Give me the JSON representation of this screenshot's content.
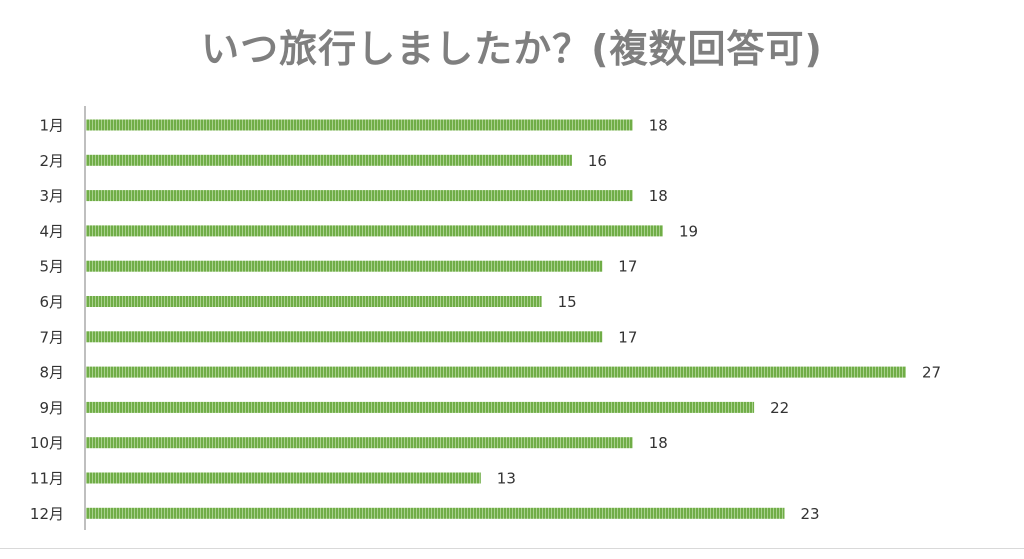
{
  "chart_data": {
    "type": "bar",
    "orientation": "horizontal",
    "title": "いつ旅行しましたか？(複数回答可)",
    "xlabel": "",
    "ylabel": "",
    "categories": [
      "1月",
      "2月",
      "3月",
      "4月",
      "5月",
      "6月",
      "7月",
      "8月",
      "9月",
      "10月",
      "11月",
      "12月"
    ],
    "values": [
      18,
      16,
      18,
      19,
      17,
      15,
      17,
      27,
      22,
      18,
      13,
      23
    ],
    "xlim": [
      0,
      27
    ],
    "grid": false,
    "data_labels": true,
    "bar_color": "#70ad47",
    "bar_pattern": "vertical-stripes",
    "title_color": "#7f7f7f"
  }
}
